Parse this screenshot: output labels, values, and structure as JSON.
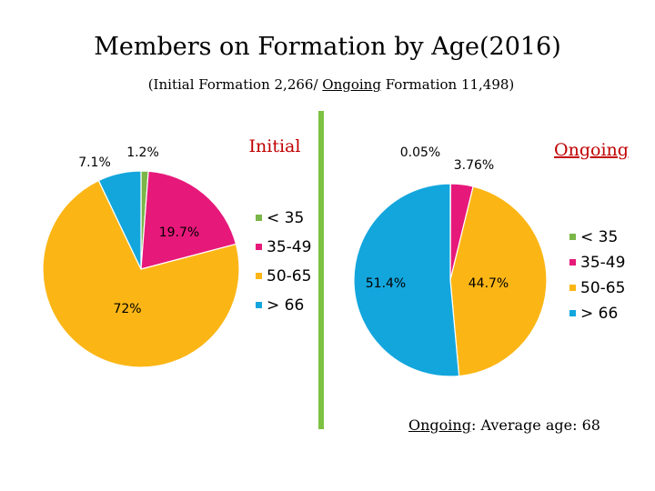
{
  "page": {
    "title": "Members on Formation by Age(2016)",
    "subtitle_parts": [
      "(Initial Formation  2,266/ ",
      "Ongoing",
      " Formation 11,498)"
    ],
    "footnote": {
      "label": "Ongoing",
      "text": ": Average age: 68"
    },
    "divider_color": "#7dc242"
  },
  "chart_data": [
    {
      "type": "pie",
      "title": "Initial",
      "title_color": "#c00000",
      "title_underline": false,
      "categories": [
        "< 35",
        "35-49",
        "50-65",
        "> 66"
      ],
      "values": [
        1.2,
        19.7,
        72,
        7.1
      ],
      "data_labels": [
        "1.2%",
        "19.7%",
        "72%",
        "7.1%"
      ],
      "colors": [
        "#7ab648",
        "#e6197a",
        "#fbb616",
        "#13a6dd"
      ],
      "legend": {
        "entries": [
          "< 35",
          "35-49",
          "50-65",
          "> 66"
        ],
        "placement": "right"
      }
    },
    {
      "type": "pie",
      "title": "Ongoing",
      "title_color": "#c00000",
      "title_underline": true,
      "categories": [
        "< 35",
        "35-49",
        "50-65",
        "> 66"
      ],
      "values": [
        0.05,
        3.76,
        44.7,
        51.4
      ],
      "data_labels": [
        "0.05%",
        "3.76%",
        "44.7%",
        "51.4%"
      ],
      "colors": [
        "#7ab648",
        "#e6197a",
        "#fbb616",
        "#13a6dd"
      ],
      "legend": {
        "entries": [
          "< 35",
          "35-49",
          "50-65",
          "> 66"
        ],
        "placement": "right"
      }
    }
  ]
}
